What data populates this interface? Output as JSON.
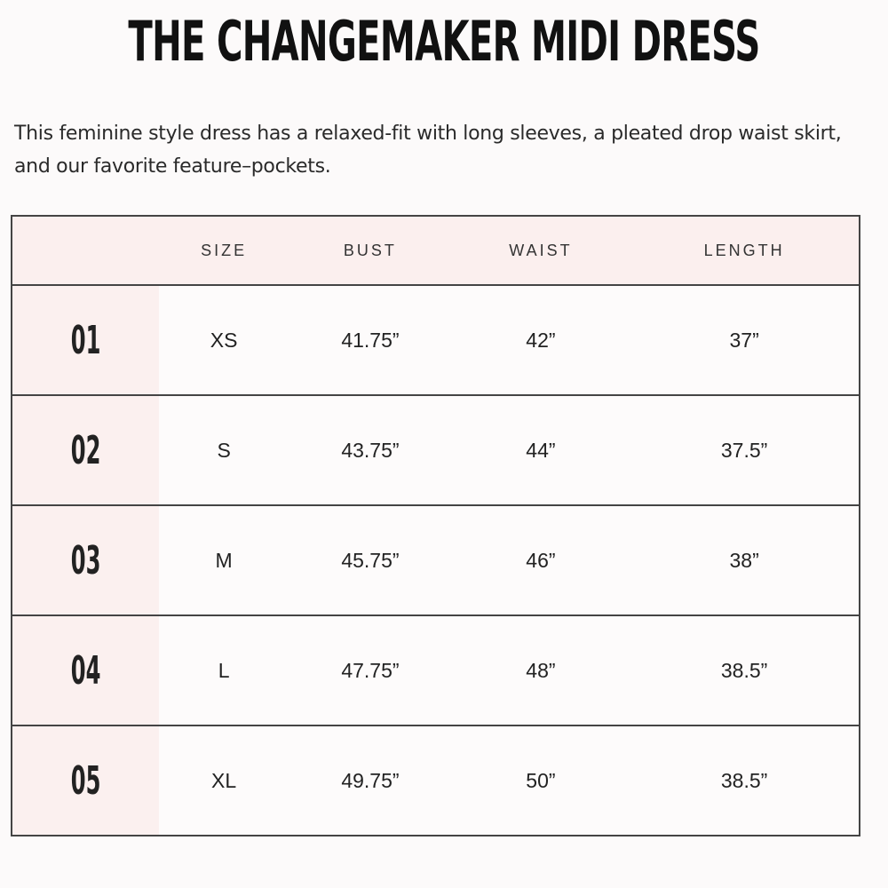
{
  "title": "THE CHANGEMAKER MIDI DRESS",
  "description": "This feminine style dress has a relaxed-fit with long sleeves, a pleated drop waist skirt, and our favorite feature–pockets.",
  "table": {
    "headers": [
      "",
      "SIZE",
      "BUST",
      "WAIST",
      "LENGTH"
    ],
    "rows": [
      {
        "num": "01",
        "size": "XS",
        "bust": "41.75”",
        "waist": "42”",
        "length": "37”"
      },
      {
        "num": "02",
        "size": "S",
        "bust": "43.75”",
        "waist": "44”",
        "length": "37.5”"
      },
      {
        "num": "03",
        "size": "M",
        "bust": "45.75”",
        "waist": "46”",
        "length": "38”"
      },
      {
        "num": "04",
        "size": "L",
        "bust": "47.75”",
        "waist": "48”",
        "length": "38.5”"
      },
      {
        "num": "05",
        "size": "XL",
        "bust": "49.75”",
        "waist": "50”",
        "length": "38.5”"
      }
    ]
  }
}
